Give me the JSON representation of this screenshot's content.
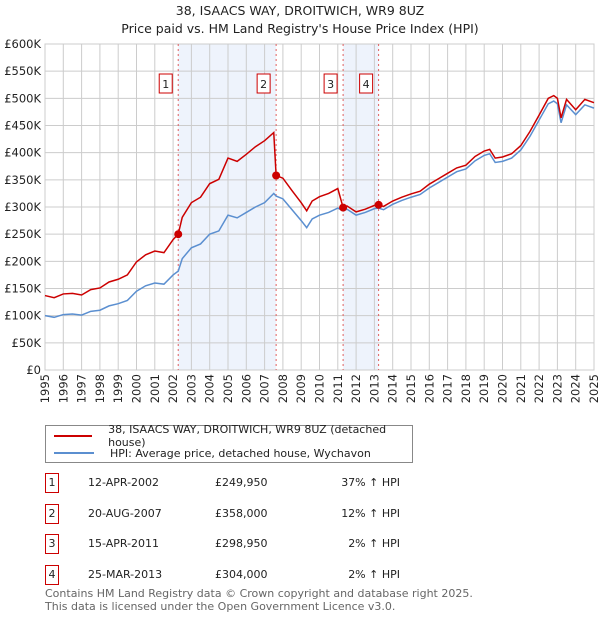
{
  "title": "38, ISAACS WAY, DROITWICH, WR9 8UZ",
  "subtitle": "Price paid vs. HM Land Registry's House Price Index (HPI)",
  "colors": {
    "property": "#cc0000",
    "hpi": "#5b8fd0",
    "shade": "#eef3fc"
  },
  "chart_data": {
    "type": "line",
    "ylim": [
      0,
      600000
    ],
    "xlim": [
      1995,
      2025
    ],
    "yticks": [
      "£0",
      "£50K",
      "£100K",
      "£150K",
      "£200K",
      "£250K",
      "£300K",
      "£350K",
      "£400K",
      "£450K",
      "£500K",
      "£550K",
      "£600K"
    ],
    "xticks": [
      "1995",
      "1996",
      "1997",
      "1998",
      "1999",
      "2000",
      "2001",
      "2002",
      "2003",
      "2004",
      "2005",
      "2006",
      "2007",
      "2008",
      "2009",
      "2010",
      "2011",
      "2012",
      "2013",
      "2014",
      "2015",
      "2016",
      "2017",
      "2018",
      "2019",
      "2020",
      "2021",
      "2022",
      "2023",
      "2024",
      "2025"
    ],
    "grid": true,
    "x": [
      1995,
      1995.5,
      1996,
      1996.5,
      1997,
      1997.5,
      1998,
      1998.5,
      1999,
      1999.5,
      2000,
      2000.5,
      2001,
      2001.5,
      2002,
      2002.28,
      2002.5,
      2003,
      2003.5,
      2004,
      2004.5,
      2005,
      2005.5,
      2006,
      2006.5,
      2007,
      2007.5,
      2007.63,
      2008,
      2008.5,
      2009,
      2009.3,
      2009.6,
      2010,
      2010.5,
      2011,
      2011.29,
      2011.5,
      2012,
      2012.5,
      2013,
      2013.23,
      2013.5,
      2014,
      2014.5,
      2015,
      2015.5,
      2016,
      2016.5,
      2017,
      2017.5,
      2018,
      2018.5,
      2019,
      2019.3,
      2019.6,
      2020,
      2020.5,
      2021,
      2021.5,
      2022,
      2022.5,
      2022.8,
      2023,
      2023.2,
      2023.5,
      2024,
      2024.5,
      2025
    ],
    "series": [
      {
        "name": "38, ISAACS WAY, DROITWICH, WR9 8UZ (detached house)",
        "values": [
          137,
          133,
          140,
          141,
          138,
          148,
          151,
          162,
          167,
          175,
          199,
          212,
          219,
          216,
          240,
          250,
          281,
          308,
          318,
          343,
          351,
          390,
          384,
          397,
          411,
          422,
          437,
          358,
          353,
          330,
          308,
          293,
          311,
          319,
          325,
          334,
          299,
          302,
          291,
          296,
          303,
          304,
          301,
          311,
          318,
          324,
          329,
          342,
          352,
          362,
          372,
          377,
          393,
          403,
          406,
          390,
          392,
          398,
          413,
          439,
          469,
          500,
          505,
          500,
          464,
          498,
          479,
          498,
          492
        ],
        "unit": "£K"
      },
      {
        "name": "HPI: Average price, detached house, Wychavon",
        "values": [
          100,
          97,
          102,
          103,
          101,
          108,
          110,
          118,
          122,
          128,
          145,
          155,
          160,
          158,
          175,
          182,
          205,
          225,
          232,
          250,
          256,
          285,
          280,
          290,
          300,
          308,
          325,
          320,
          315,
          295,
          275,
          262,
          278,
          285,
          290,
          298,
          293,
          296,
          285,
          290,
          297,
          298,
          295,
          305,
          312,
          318,
          323,
          335,
          345,
          355,
          365,
          370,
          385,
          395,
          398,
          382,
          384,
          390,
          405,
          430,
          460,
          490,
          495,
          490,
          455,
          488,
          470,
          488,
          482
        ],
        "unit": "£K"
      }
    ],
    "sales": [
      {
        "label": "1",
        "x": 2002.28,
        "value": 249950
      },
      {
        "label": "2",
        "x": 2007.63,
        "value": 358000
      },
      {
        "label": "3",
        "x": 2011.29,
        "value": 298950
      },
      {
        "label": "4",
        "x": 2013.23,
        "value": 304000
      }
    ],
    "shaded": [
      [
        2002.28,
        2007.63
      ],
      [
        2011.29,
        2013.23
      ]
    ]
  },
  "table": [
    {
      "n": "1",
      "date": "12-APR-2002",
      "price": "£249,950",
      "hpi": "37% ↑ HPI"
    },
    {
      "n": "2",
      "date": "20-AUG-2007",
      "price": "£358,000",
      "hpi": "12% ↑ HPI"
    },
    {
      "n": "3",
      "date": "15-APR-2011",
      "price": "£298,950",
      "hpi": "2% ↑ HPI"
    },
    {
      "n": "4",
      "date": "25-MAR-2013",
      "price": "£304,000",
      "hpi": "2% ↑ HPI"
    }
  ],
  "footer": [
    "Contains HM Land Registry data © Crown copyright and database right 2025.",
    "This data is licensed under the Open Government Licence v3.0."
  ]
}
